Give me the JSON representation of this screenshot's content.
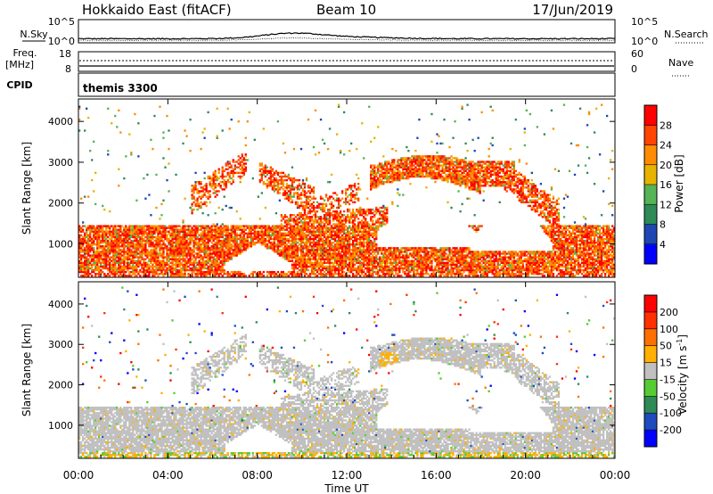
{
  "header": {
    "title": "Hokkaido East (fitACF)",
    "beam": "Beam 10",
    "date": "17/Jun/2019"
  },
  "panels": {
    "nsky": {
      "left_label": "N.Sky",
      "right_label": "N.Search",
      "left_top": "10^5",
      "left_bottom": "10^0",
      "right_top": "10^5",
      "right_bottom": "10^0"
    },
    "freq": {
      "left_label_1": "Freq.",
      "left_label_2": "[MHz]",
      "right_label": "Nave",
      "left_top": "18",
      "left_bottom": "8",
      "right_top": "60",
      "right_bottom": "0"
    },
    "cpid": {
      "label": "CPID",
      "program": "themis 3300"
    }
  },
  "chart_data": [
    {
      "type": "heatmap",
      "name": "power",
      "ylabel": "Slant Range [km]",
      "ylim": [
        180,
        4550
      ],
      "yticks": [
        "1000",
        "2000",
        "3000",
        "4000"
      ],
      "colorbar": {
        "label": "Power [dB]",
        "ticks": [
          "4",
          "8",
          "12",
          "16",
          "20",
          "24",
          "28"
        ],
        "colors": [
          "#0000ff",
          "#1e46b4",
          "#2e8b57",
          "#55b455",
          "#e6b400",
          "#ff8c00",
          "#ff4500",
          "#ff0000"
        ]
      }
    },
    {
      "type": "heatmap",
      "name": "velocity",
      "xlabel": "Time UT",
      "xticks": [
        "00:00",
        "04:00",
        "08:00",
        "12:00",
        "16:00",
        "20:00",
        "00:00"
      ],
      "xlim": [
        0,
        24
      ],
      "ylabel": "Slant Range [km]",
      "ylim": [
        180,
        4550
      ],
      "yticks": [
        "1000",
        "2000",
        "3000",
        "4000"
      ],
      "colorbar": {
        "label_main": "Velocity [m s",
        "label_sup": "-1",
        "label_end": "]",
        "ticks": [
          "200",
          "100",
          "50",
          "15",
          "-15",
          "-50",
          "-100",
          "-200"
        ],
        "colors": [
          "#0000ff",
          "#1e4bbe",
          "#2e8b57",
          "#55cc33",
          "#c0c0c0",
          "#ffb000",
          "#ff7000",
          "#ff3000",
          "#ff0000"
        ]
      }
    }
  ]
}
